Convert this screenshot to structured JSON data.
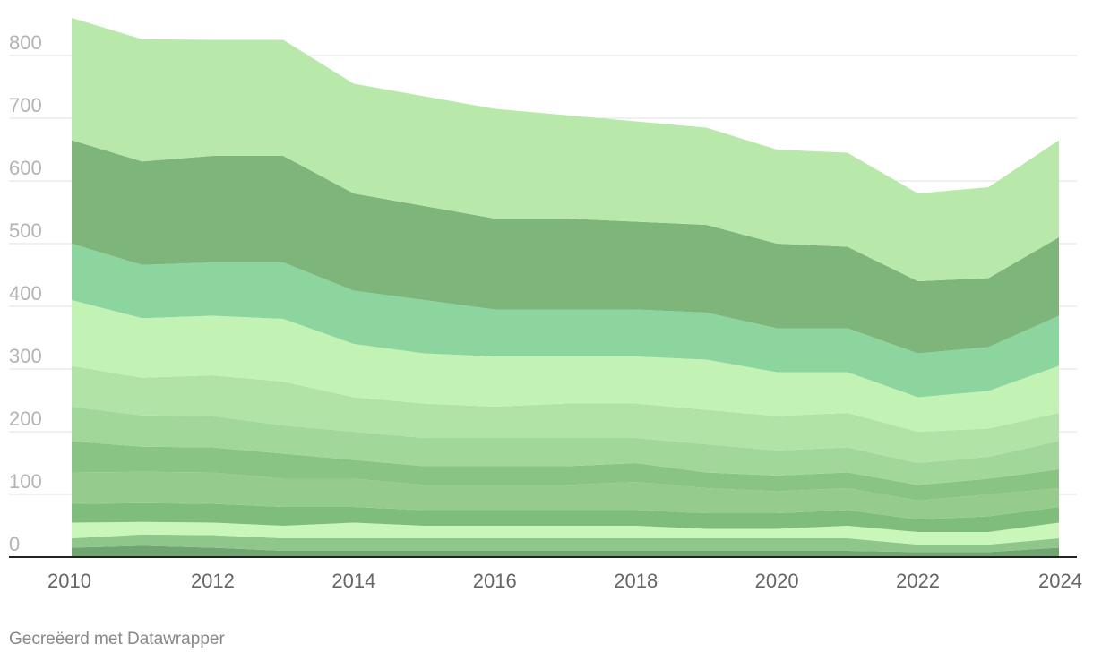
{
  "chart_data": {
    "type": "area",
    "stacked": true,
    "x": [
      2010,
      2011,
      2012,
      2013,
      2014,
      2015,
      2016,
      2017,
      2018,
      2019,
      2020,
      2021,
      2022,
      2023,
      2024
    ],
    "x_ticks": [
      2010,
      2012,
      2014,
      2016,
      2018,
      2020,
      2022,
      2024
    ],
    "y_ticks": [
      0,
      100,
      200,
      300,
      400,
      500,
      600,
      700,
      800
    ],
    "ylim": [
      0,
      860
    ],
    "grid": true,
    "legend": "none",
    "series": [
      {
        "color": "#6fa56f",
        "values": [
          15,
          18,
          15,
          10,
          10,
          10,
          10,
          10,
          10,
          10,
          10,
          10,
          8,
          8,
          15
        ]
      },
      {
        "color": "#8fc68b",
        "values": [
          15,
          18,
          20,
          20,
          20,
          20,
          20,
          20,
          20,
          20,
          20,
          20,
          12,
          12,
          15
        ]
      },
      {
        "color": "#c9f7b9",
        "values": [
          25,
          20,
          20,
          20,
          25,
          20,
          20,
          20,
          20,
          15,
          15,
          20,
          20,
          20,
          25
        ]
      },
      {
        "color": "#7fbe7a",
        "values": [
          30,
          30,
          30,
          30,
          25,
          25,
          25,
          25,
          25,
          25,
          25,
          25,
          20,
          25,
          25
        ]
      },
      {
        "color": "#95cc8c",
        "values": [
          50,
          50,
          50,
          45,
          45,
          40,
          40,
          40,
          45,
          40,
          35,
          35,
          30,
          35,
          30
        ]
      },
      {
        "color": "#89c483",
        "values": [
          50,
          40,
          40,
          40,
          30,
          30,
          30,
          30,
          30,
          25,
          25,
          25,
          25,
          25,
          30
        ]
      },
      {
        "color": "#a2d79a",
        "values": [
          55,
          50,
          50,
          45,
          45,
          45,
          45,
          45,
          40,
          45,
          40,
          40,
          35,
          35,
          45
        ]
      },
      {
        "color": "#b1e2a6",
        "values": [
          65,
          60,
          65,
          70,
          55,
          55,
          50,
          55,
          55,
          55,
          55,
          55,
          50,
          45,
          45
        ]
      },
      {
        "color": "#c2f3b5",
        "values": [
          105,
          95,
          95,
          100,
          85,
          80,
          80,
          75,
          75,
          80,
          70,
          65,
          55,
          60,
          75
        ]
      },
      {
        "color": "#8cd59e",
        "values": [
          90,
          85,
          85,
          90,
          85,
          85,
          75,
          75,
          75,
          75,
          70,
          70,
          70,
          70,
          80
        ]
      },
      {
        "color": "#7eb57a",
        "values": [
          165,
          165,
          170,
          170,
          155,
          150,
          145,
          145,
          140,
          140,
          135,
          130,
          115,
          110,
          125
        ]
      },
      {
        "color": "#b8e9ab",
        "values": [
          195,
          195,
          185,
          185,
          175,
          175,
          175,
          165,
          160,
          155,
          150,
          150,
          140,
          145,
          155
        ]
      }
    ]
  },
  "footer": {
    "credit": "Gecreëerd met Datawrapper"
  }
}
